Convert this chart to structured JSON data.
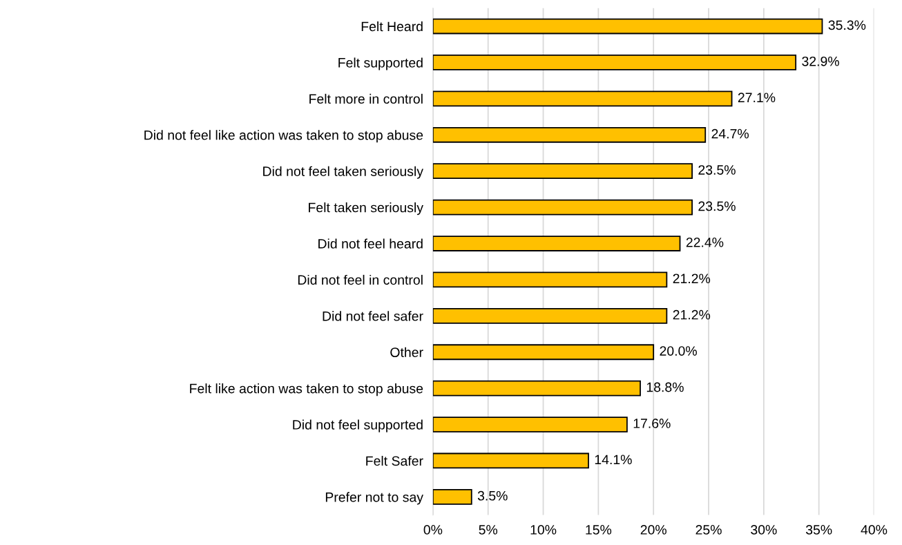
{
  "chart_data": {
    "type": "bar",
    "orientation": "horizontal",
    "categories": [
      "Felt Heard",
      "Felt supported",
      "Felt more in control",
      "Did not feel like action was taken to stop abuse",
      "Did not feel taken seriously",
      "Felt taken seriously",
      "Did not feel heard",
      "Did not feel in control",
      "Did not feel safer",
      "Other",
      "Felt like action was taken to stop abuse",
      "Did not feel supported",
      "Felt Safer",
      "Prefer not to say"
    ],
    "values": [
      35.3,
      32.9,
      27.1,
      24.7,
      23.5,
      23.5,
      22.4,
      21.2,
      21.2,
      20.0,
      18.8,
      17.6,
      14.1,
      3.5
    ],
    "value_labels": [
      "35.3%",
      "32.9%",
      "27.1%",
      "24.7%",
      "23.5%",
      "23.5%",
      "22.4%",
      "21.2%",
      "21.2%",
      "20.0%",
      "18.8%",
      "17.6%",
      "14.1%",
      "3.5%"
    ],
    "color": "#ffc000",
    "xlim": [
      0,
      40
    ],
    "xticks": [
      {
        "value": 0,
        "label": "0%"
      },
      {
        "value": 5,
        "label": "5%"
      },
      {
        "value": 10,
        "label": "10%"
      },
      {
        "value": 15,
        "label": "15%"
      },
      {
        "value": 20,
        "label": "20%"
      },
      {
        "value": 25,
        "label": "25%"
      },
      {
        "value": 30,
        "label": "30%"
      },
      {
        "value": 35,
        "label": "35%"
      },
      {
        "value": 40,
        "label": "40%"
      }
    ],
    "grid": "x",
    "legend": false
  }
}
